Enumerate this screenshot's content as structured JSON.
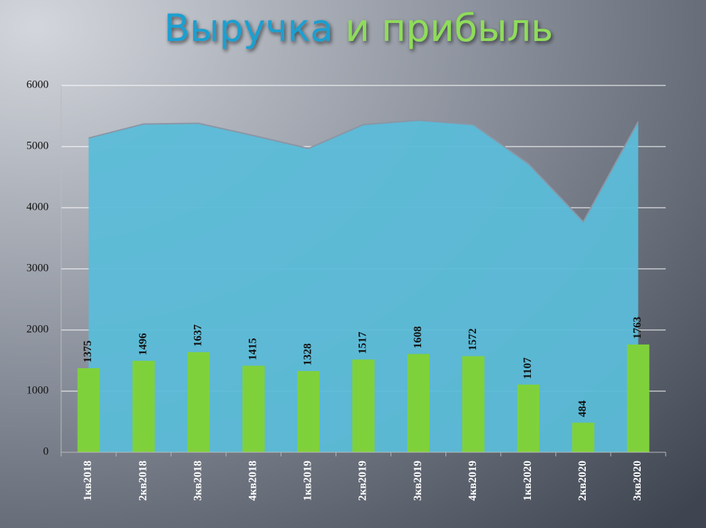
{
  "chart_data": {
    "type": "combo",
    "title": [
      "Выручка",
      "и прибыль"
    ],
    "categories": [
      "1кв2018",
      "2кв2018",
      "3кв2018",
      "4кв2018",
      "1кв2019",
      "2кв2019",
      "3кв2019",
      "4кв2019",
      "1кв2020",
      "2кв2020",
      "3кв2020"
    ],
    "series": [
      {
        "type": "area",
        "color": "#5bbcd8",
        "values": [
          5140,
          5370,
          5380,
          5180,
          4970,
          5360,
          5430,
          5360,
          4720,
          3770,
          5410
        ]
      },
      {
        "type": "bar",
        "color": "#7fd13b",
        "values": [
          1375,
          1496,
          1637,
          1415,
          1328,
          1517,
          1608,
          1572,
          1107,
          484,
          1763
        ]
      }
    ],
    "ylim": [
      0,
      6000
    ],
    "yticks": [
      0,
      1000,
      2000,
      3000,
      4000,
      5000,
      6000
    ],
    "grid": true
  }
}
